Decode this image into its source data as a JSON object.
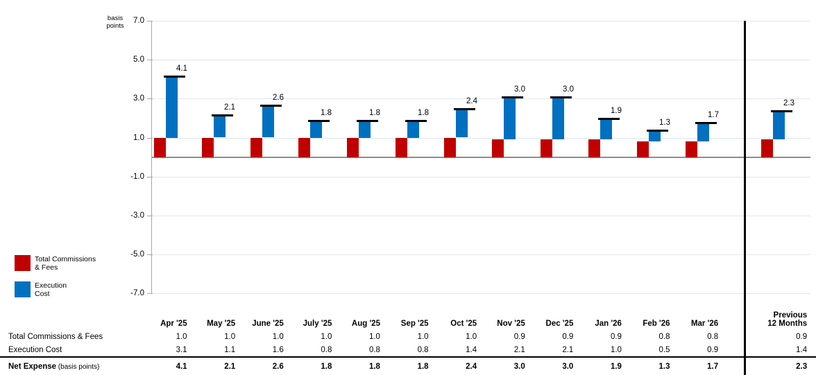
{
  "axis": {
    "title_lines": [
      "basis",
      "points"
    ],
    "ytick_labels": [
      "7.0",
      "5.0",
      "3.0",
      "1.0",
      "-1.0",
      "-3.0",
      "-5.0",
      "-7.0"
    ]
  },
  "legend": {
    "items": [
      {
        "name": "total-commissions-fees",
        "label_lines": [
          "Total Commissions",
          "& Fees"
        ],
        "color": "#C00000"
      },
      {
        "name": "execution-cost",
        "label_lines": [
          "Execution",
          "Cost"
        ],
        "color": "#0070C0"
      }
    ]
  },
  "chart_data": {
    "type": "bar",
    "subtype": "clustered-stacked with total cap markers",
    "title": "",
    "xlabel": "",
    "ylabel": "basis points",
    "ylim": [
      -7.0,
      7.0
    ],
    "ytick_values": [
      7,
      5,
      3,
      1,
      -1,
      -3,
      -5,
      -7
    ],
    "grid": true,
    "legend_position": "left-middle",
    "categories": [
      "Apr '25",
      "May '25",
      "June '25",
      "July '25",
      "Aug '25",
      "Sep '25",
      "Oct '25",
      "Nov '25",
      "Dec '25",
      "Jan '26",
      "Feb '26",
      "Mar '26",
      "Previous 12 Months"
    ],
    "series": [
      {
        "name": "Total Commissions & Fees",
        "color": "#C00000",
        "values": [
          1.0,
          1.0,
          1.0,
          1.0,
          1.0,
          1.0,
          1.0,
          0.9,
          0.9,
          0.9,
          0.8,
          0.8,
          0.9
        ]
      },
      {
        "name": "Execution Cost",
        "color": "#0070C0",
        "values": [
          3.1,
          1.1,
          1.6,
          0.8,
          0.8,
          0.8,
          1.4,
          2.1,
          2.1,
          1.0,
          0.5,
          0.9,
          1.4
        ]
      }
    ],
    "totals": {
      "name": "Net Expense",
      "unit": "basis points",
      "values": [
        4.1,
        2.1,
        2.6,
        1.8,
        1.8,
        1.8,
        2.4,
        3.0,
        3.0,
        1.9,
        1.3,
        1.7,
        2.3
      ]
    },
    "bar_value_labels": [
      "4.1",
      "2.1",
      "2.6",
      "1.8",
      "1.8",
      "1.8",
      "2.4",
      "3.0",
      "3.0",
      "1.9",
      "1.3",
      "1.7",
      "2.3"
    ]
  },
  "table": {
    "last_col_header_lines": [
      "Previous",
      "12 Months"
    ],
    "row_labels": {
      "commissions": "Total Commissions & Fees",
      "execution": "Execution Cost",
      "net": "Net Expense",
      "net_suffix": "(basis points)"
    }
  },
  "colors": {
    "red": "#C00000",
    "blue": "#0070C0",
    "gridline": "#DDE7F0",
    "axis_line": "#A6A6A6",
    "zero_line": "#8C8C8C",
    "separator": "#000000",
    "cap": "#000000"
  }
}
